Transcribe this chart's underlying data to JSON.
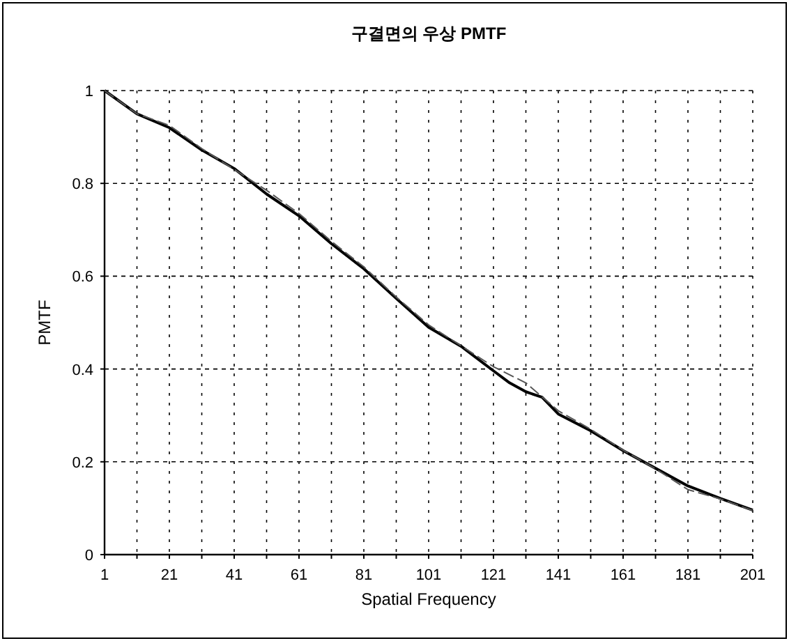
{
  "chart_data": {
    "type": "line",
    "title": "구결면의 우상 PMTF",
    "xlabel": "Spatial Frequency",
    "ylabel": "PMTF",
    "xlim": [
      1,
      201
    ],
    "ylim": [
      0,
      1
    ],
    "xticks": [
      1,
      {
        "value": 11,
        "label": null
      },
      21,
      {
        "value": 31,
        "label": null
      },
      41,
      {
        "value": 51,
        "label": null
      },
      61,
      {
        "value": 71,
        "label": null
      },
      81,
      {
        "value": 91,
        "label": null
      },
      101,
      {
        "value": 111,
        "label": null
      },
      121,
      {
        "value": 131,
        "label": null
      },
      141,
      {
        "value": 151,
        "label": null
      },
      161,
      {
        "value": 171,
        "label": null
      },
      181,
      {
        "value": 191,
        "label": null
      },
      201
    ],
    "yticks": [
      0,
      0.2,
      0.4,
      0.6,
      0.8,
      1
    ],
    "grid": true,
    "series": [
      {
        "color": "#000000",
        "line_style": "solid",
        "x": [
          1,
          11,
          21,
          31,
          41,
          51,
          61,
          71,
          81,
          91,
          101,
          111,
          121,
          126,
          131,
          136,
          141,
          151,
          161,
          171,
          181,
          191,
          201
        ],
        "values": [
          1.0,
          0.95,
          0.92,
          0.872,
          0.832,
          0.777,
          0.73,
          0.67,
          0.616,
          0.552,
          0.49,
          0.449,
          0.396,
          0.37,
          0.351,
          0.339,
          0.303,
          0.267,
          0.224,
          0.186,
          0.148,
          0.121,
          0.096
        ]
      },
      {
        "color": "#555555",
        "line_style": "dashed",
        "x": [
          1,
          11,
          21,
          31,
          41,
          51,
          61,
          71,
          81,
          91,
          101,
          111,
          121,
          131,
          141,
          151,
          161,
          171,
          181,
          191,
          201
        ],
        "values": [
          1.0,
          0.95,
          0.925,
          0.875,
          0.83,
          0.785,
          0.735,
          0.675,
          0.62,
          0.555,
          0.495,
          0.45,
          0.405,
          0.37,
          0.31,
          0.27,
          0.225,
          0.185,
          0.14,
          0.12,
          0.095
        ]
      }
    ]
  }
}
